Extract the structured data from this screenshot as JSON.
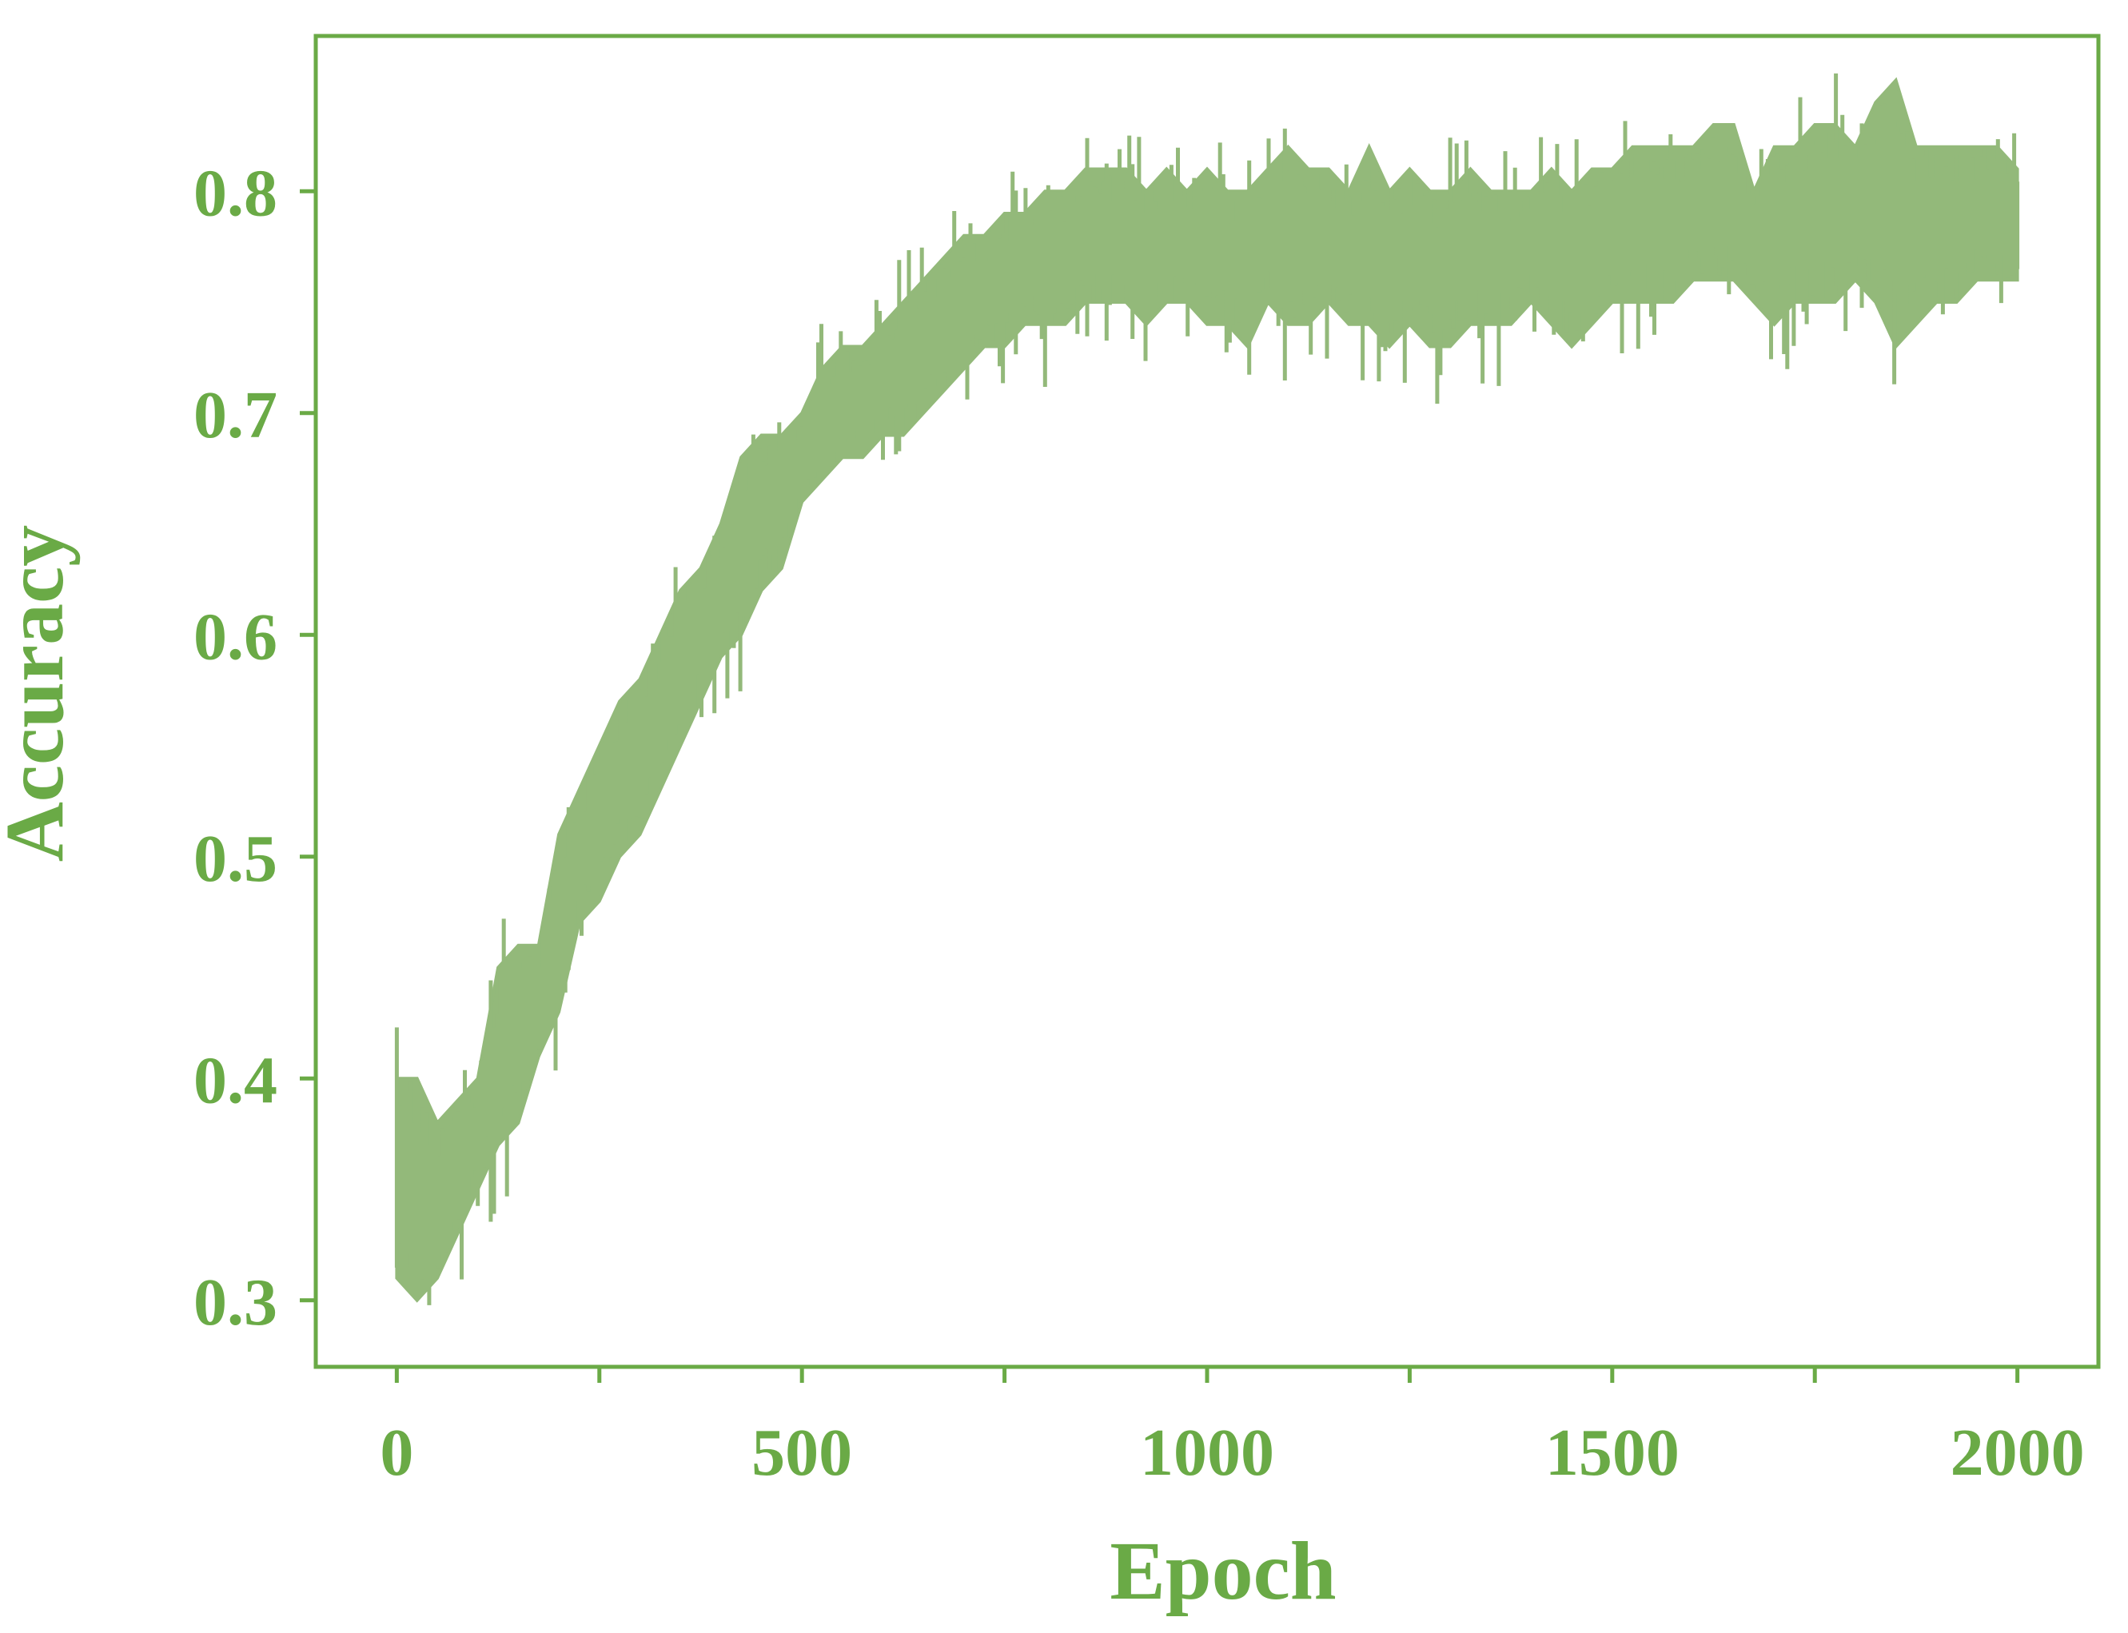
{
  "colors": {
    "axis": "#6aaa46",
    "text": "#6aaa46",
    "series": "#93b97a",
    "background": "#ffffff"
  },
  "chart_data": {
    "type": "line",
    "title": "",
    "xlabel": "Epoch",
    "ylabel": "Accuracy",
    "xlim": [
      -100,
      2100
    ],
    "ylim": [
      0.27,
      0.87
    ],
    "xticks": [
      0,
      250,
      500,
      750,
      1000,
      1250,
      1500,
      1750,
      2000
    ],
    "xtick_labels": [
      "0",
      "",
      "500",
      "",
      "1000",
      "",
      "1500",
      "",
      "2000"
    ],
    "yticks": [
      0.3,
      0.4,
      0.5,
      0.6,
      0.7,
      0.8
    ],
    "ytick_labels": [
      "0.3",
      "0.4",
      "0.5",
      "0.6",
      "0.7",
      "0.8"
    ],
    "grid": false,
    "legend": "none",
    "series": [
      {
        "x": [
          0,
          25,
          50,
          75,
          100,
          125,
          150,
          175,
          200,
          225,
          250,
          275,
          300,
          325,
          350,
          375,
          400,
          425,
          450,
          475,
          500,
          525,
          550,
          575,
          600,
          625,
          650,
          675,
          700,
          725,
          750,
          775,
          800,
          825,
          850,
          875,
          900,
          925,
          950,
          975,
          1000,
          1025,
          1050,
          1075,
          1100,
          1125,
          1150,
          1175,
          1200,
          1225,
          1250,
          1275,
          1300,
          1325,
          1350,
          1375,
          1400,
          1425,
          1450,
          1475,
          1500,
          1525,
          1550,
          1575,
          1600,
          1625,
          1650,
          1675,
          1700,
          1725,
          1750,
          1775,
          1800,
          1825,
          1850,
          1875,
          1900,
          1925,
          1950,
          1975,
          2000
        ],
        "upper": [
          0.4,
          0.4,
          0.38,
          0.39,
          0.4,
          0.45,
          0.46,
          0.46,
          0.51,
          0.53,
          0.55,
          0.57,
          0.58,
          0.6,
          0.62,
          0.63,
          0.65,
          0.68,
          0.69,
          0.69,
          0.7,
          0.72,
          0.73,
          0.73,
          0.74,
          0.75,
          0.76,
          0.77,
          0.78,
          0.78,
          0.79,
          0.79,
          0.8,
          0.8,
          0.81,
          0.81,
          0.81,
          0.8,
          0.81,
          0.8,
          0.81,
          0.8,
          0.8,
          0.81,
          0.82,
          0.81,
          0.81,
          0.8,
          0.82,
          0.8,
          0.81,
          0.8,
          0.8,
          0.81,
          0.8,
          0.8,
          0.8,
          0.81,
          0.8,
          0.81,
          0.81,
          0.82,
          0.82,
          0.82,
          0.82,
          0.83,
          0.83,
          0.8,
          0.82,
          0.82,
          0.83,
          0.83,
          0.82,
          0.84,
          0.85,
          0.82,
          0.82,
          0.82,
          0.82,
          0.82,
          0.81
        ],
        "lower": [
          0.31,
          0.3,
          0.31,
          0.33,
          0.35,
          0.37,
          0.38,
          0.41,
          0.43,
          0.47,
          0.48,
          0.5,
          0.51,
          0.53,
          0.55,
          0.57,
          0.59,
          0.6,
          0.62,
          0.63,
          0.66,
          0.67,
          0.68,
          0.68,
          0.69,
          0.69,
          0.7,
          0.71,
          0.72,
          0.73,
          0.73,
          0.74,
          0.74,
          0.74,
          0.75,
          0.75,
          0.75,
          0.74,
          0.75,
          0.75,
          0.74,
          0.74,
          0.73,
          0.75,
          0.74,
          0.74,
          0.75,
          0.74,
          0.74,
          0.73,
          0.74,
          0.73,
          0.73,
          0.74,
          0.74,
          0.74,
          0.75,
          0.74,
          0.73,
          0.74,
          0.75,
          0.75,
          0.75,
          0.75,
          0.76,
          0.76,
          0.76,
          0.75,
          0.74,
          0.75,
          0.75,
          0.75,
          0.76,
          0.75,
          0.73,
          0.74,
          0.75,
          0.75,
          0.76,
          0.76,
          0.76
        ]
      }
    ]
  }
}
